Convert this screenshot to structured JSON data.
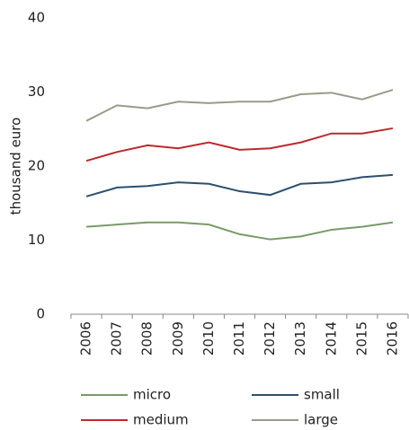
{
  "chart_data": {
    "type": "line",
    "y_label": "thousand euro",
    "categories": [
      "2006",
      "2007",
      "2008",
      "2009",
      "2010",
      "2011",
      "2012",
      "2013",
      "2014",
      "2015",
      "2016"
    ],
    "series": [
      {
        "name": "micro",
        "color": "#7a9a6a",
        "values": [
          11.8,
          12.1,
          12.4,
          12.4,
          12.1,
          10.8,
          10.1,
          10.5,
          11.4,
          11.8,
          12.4
        ]
      },
      {
        "name": "small",
        "color": "#2e4f6e",
        "values": [
          15.9,
          17.1,
          17.3,
          17.8,
          17.6,
          16.6,
          16.1,
          17.6,
          17.8,
          18.5,
          18.8
        ]
      },
      {
        "name": "medium",
        "color": "#c0282d",
        "values": [
          20.7,
          21.9,
          22.8,
          22.4,
          23.2,
          22.2,
          22.4,
          23.2,
          24.4,
          24.4,
          25.1
        ]
      },
      {
        "name": "large",
        "color": "#9a9a8a",
        "values": [
          26.1,
          28.2,
          27.8,
          28.7,
          28.5,
          28.7,
          28.7,
          29.7,
          29.9,
          29.0,
          30.3
        ]
      }
    ],
    "ylim": [
      0,
      40
    ],
    "yticks": [
      0,
      10,
      20,
      30,
      40
    ],
    "grid": false
  }
}
